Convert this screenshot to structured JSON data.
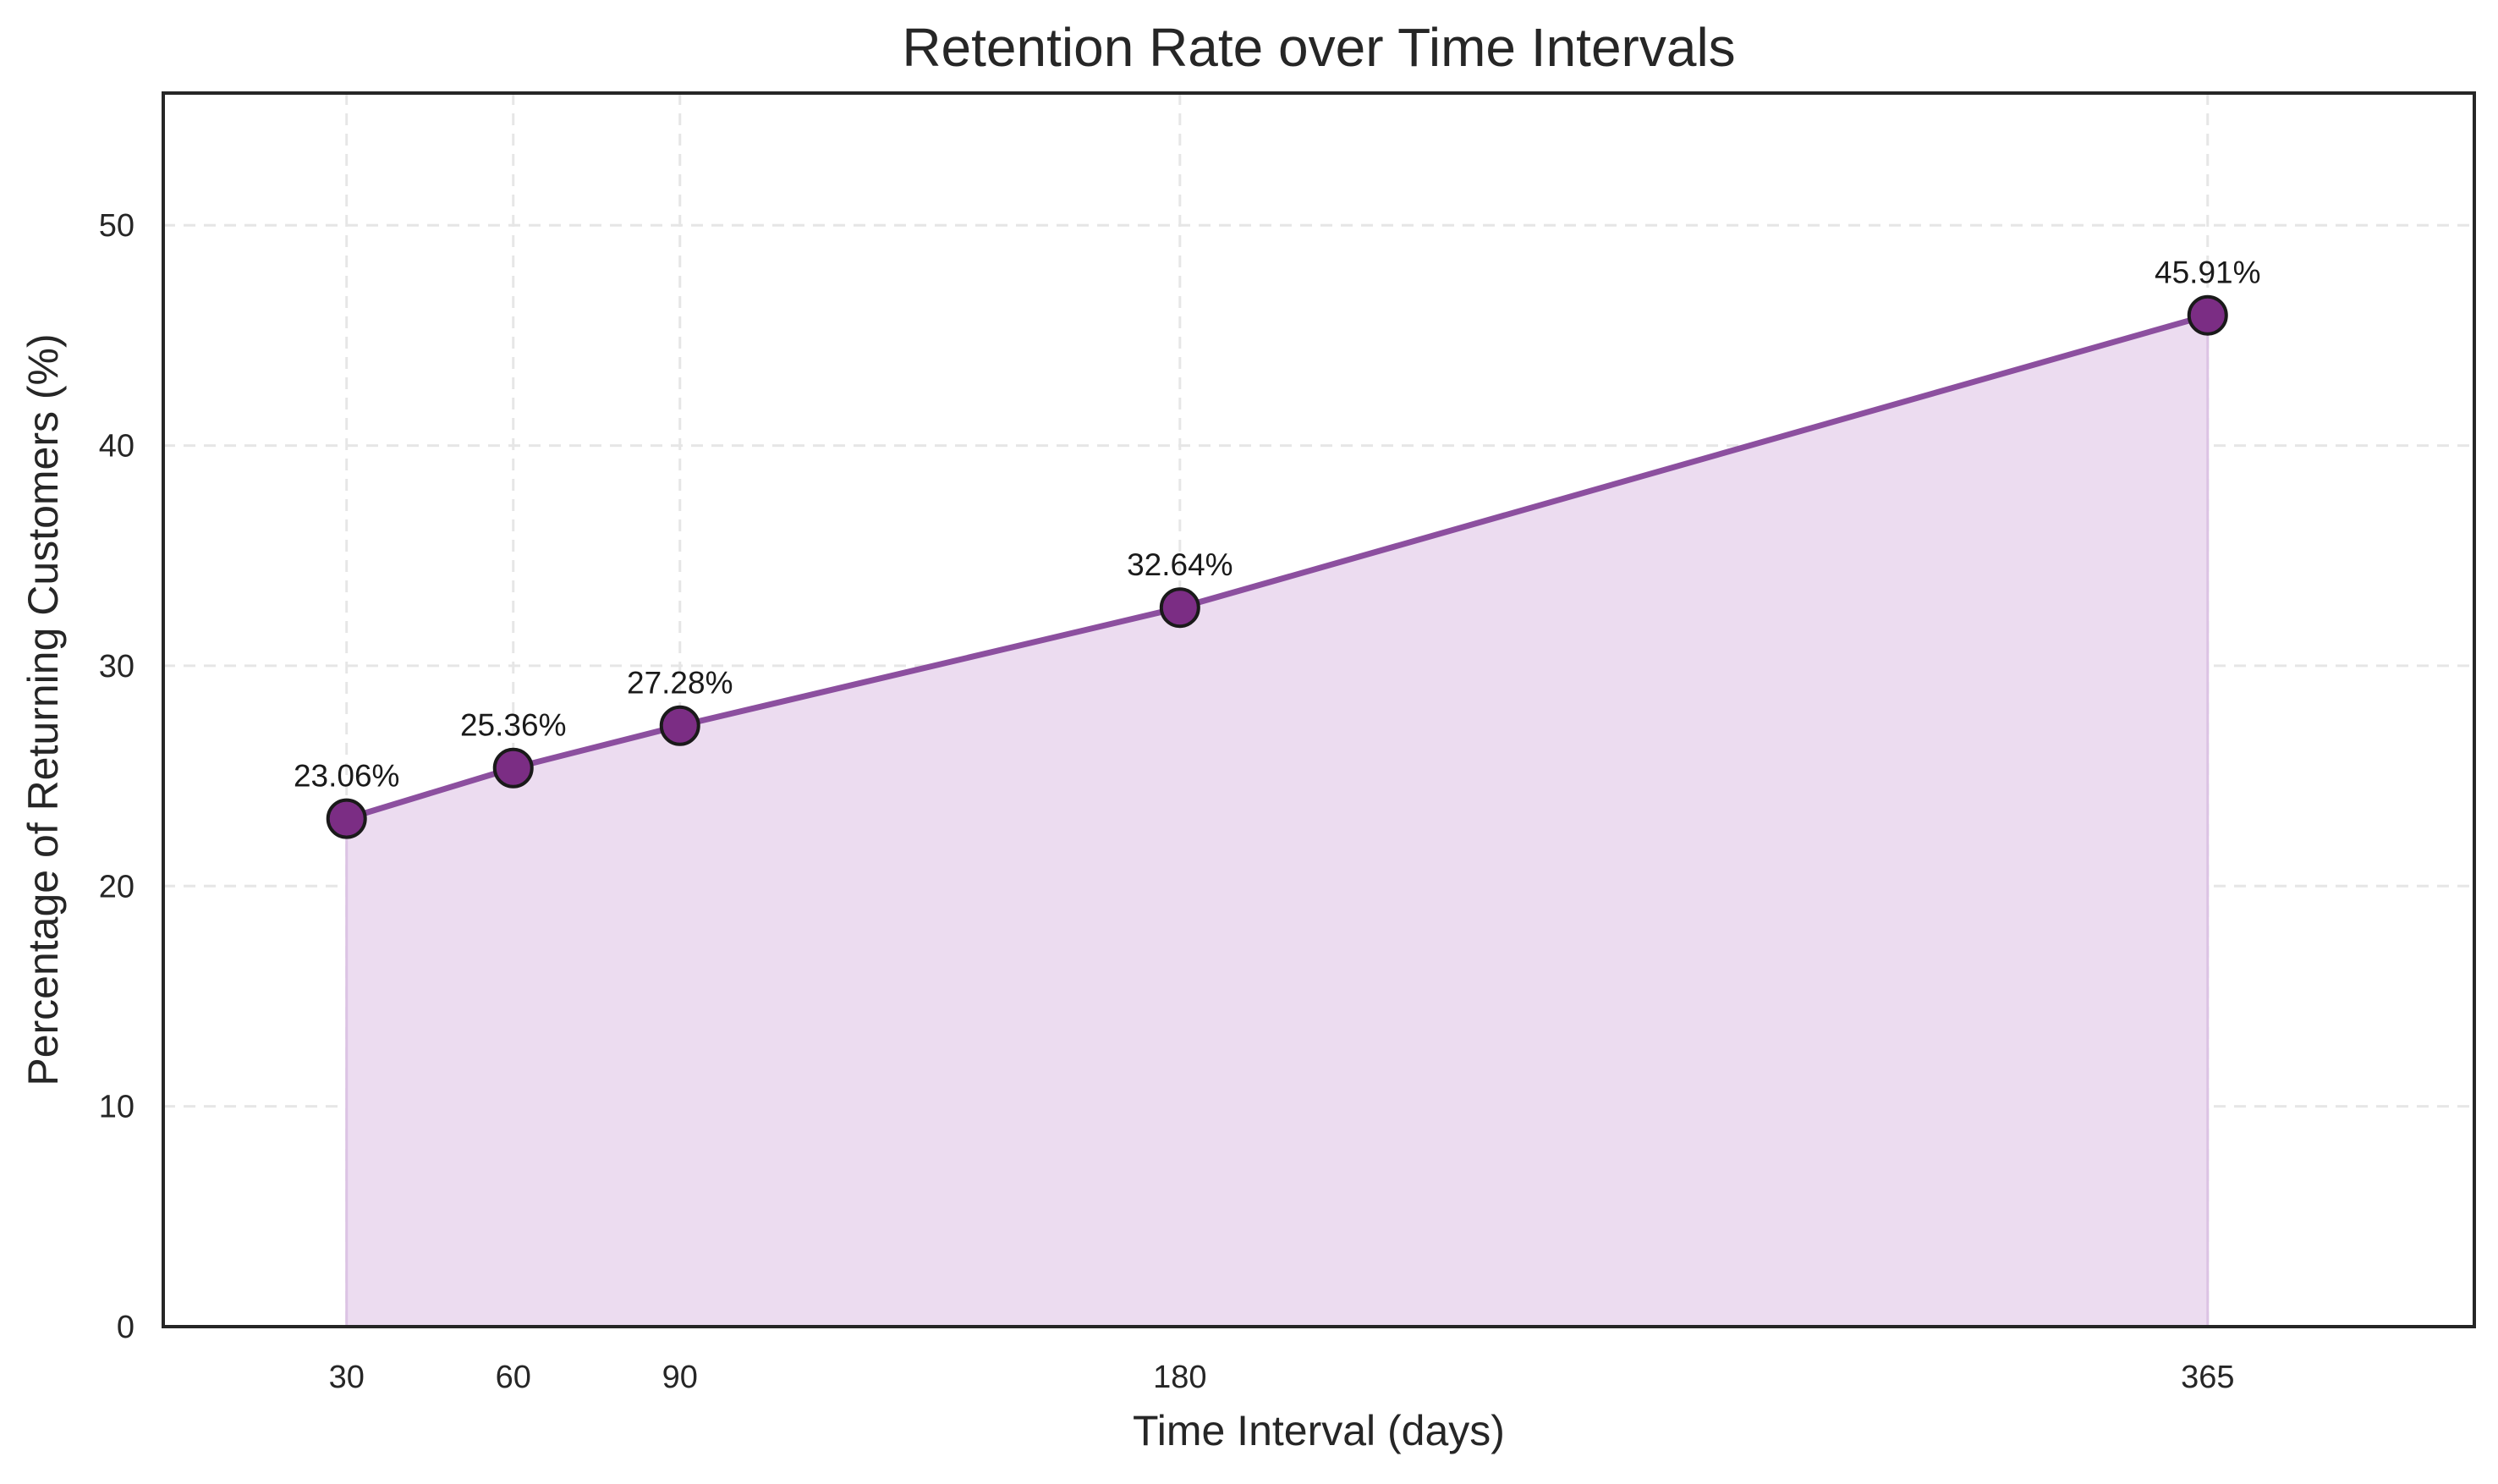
{
  "chart_data": {
    "type": "area",
    "title": "Retention Rate over Time Intervals",
    "xlabel": "Time Interval (days)",
    "ylabel": "Percentage of Returning Customers (%)",
    "x": [
      30,
      60,
      90,
      180,
      365
    ],
    "x_tick_labels": [
      "30",
      "60",
      "90",
      "180",
      "365"
    ],
    "y_ticks": [
      0,
      10,
      20,
      30,
      40,
      50
    ],
    "y_tick_labels": [
      "0",
      "10",
      "20",
      "30",
      "40",
      "50"
    ],
    "xlim": [
      -3,
      413
    ],
    "ylim": [
      0,
      56
    ],
    "series": [
      {
        "values": [
          23.06,
          25.36,
          27.28,
          32.64,
          45.91
        ],
        "data_labels": [
          "23.06%",
          "25.36%",
          "27.28%",
          "32.64%",
          "45.91%"
        ]
      }
    ],
    "grid": true,
    "legend": "none",
    "colors": {
      "line": "#8c4f9f",
      "marker_fill": "#7b2d84",
      "marker_edge": "#1a1a1a",
      "area_fill": "#ecdcf0",
      "grid": "#e6e6e6",
      "axis": "#262626"
    }
  }
}
